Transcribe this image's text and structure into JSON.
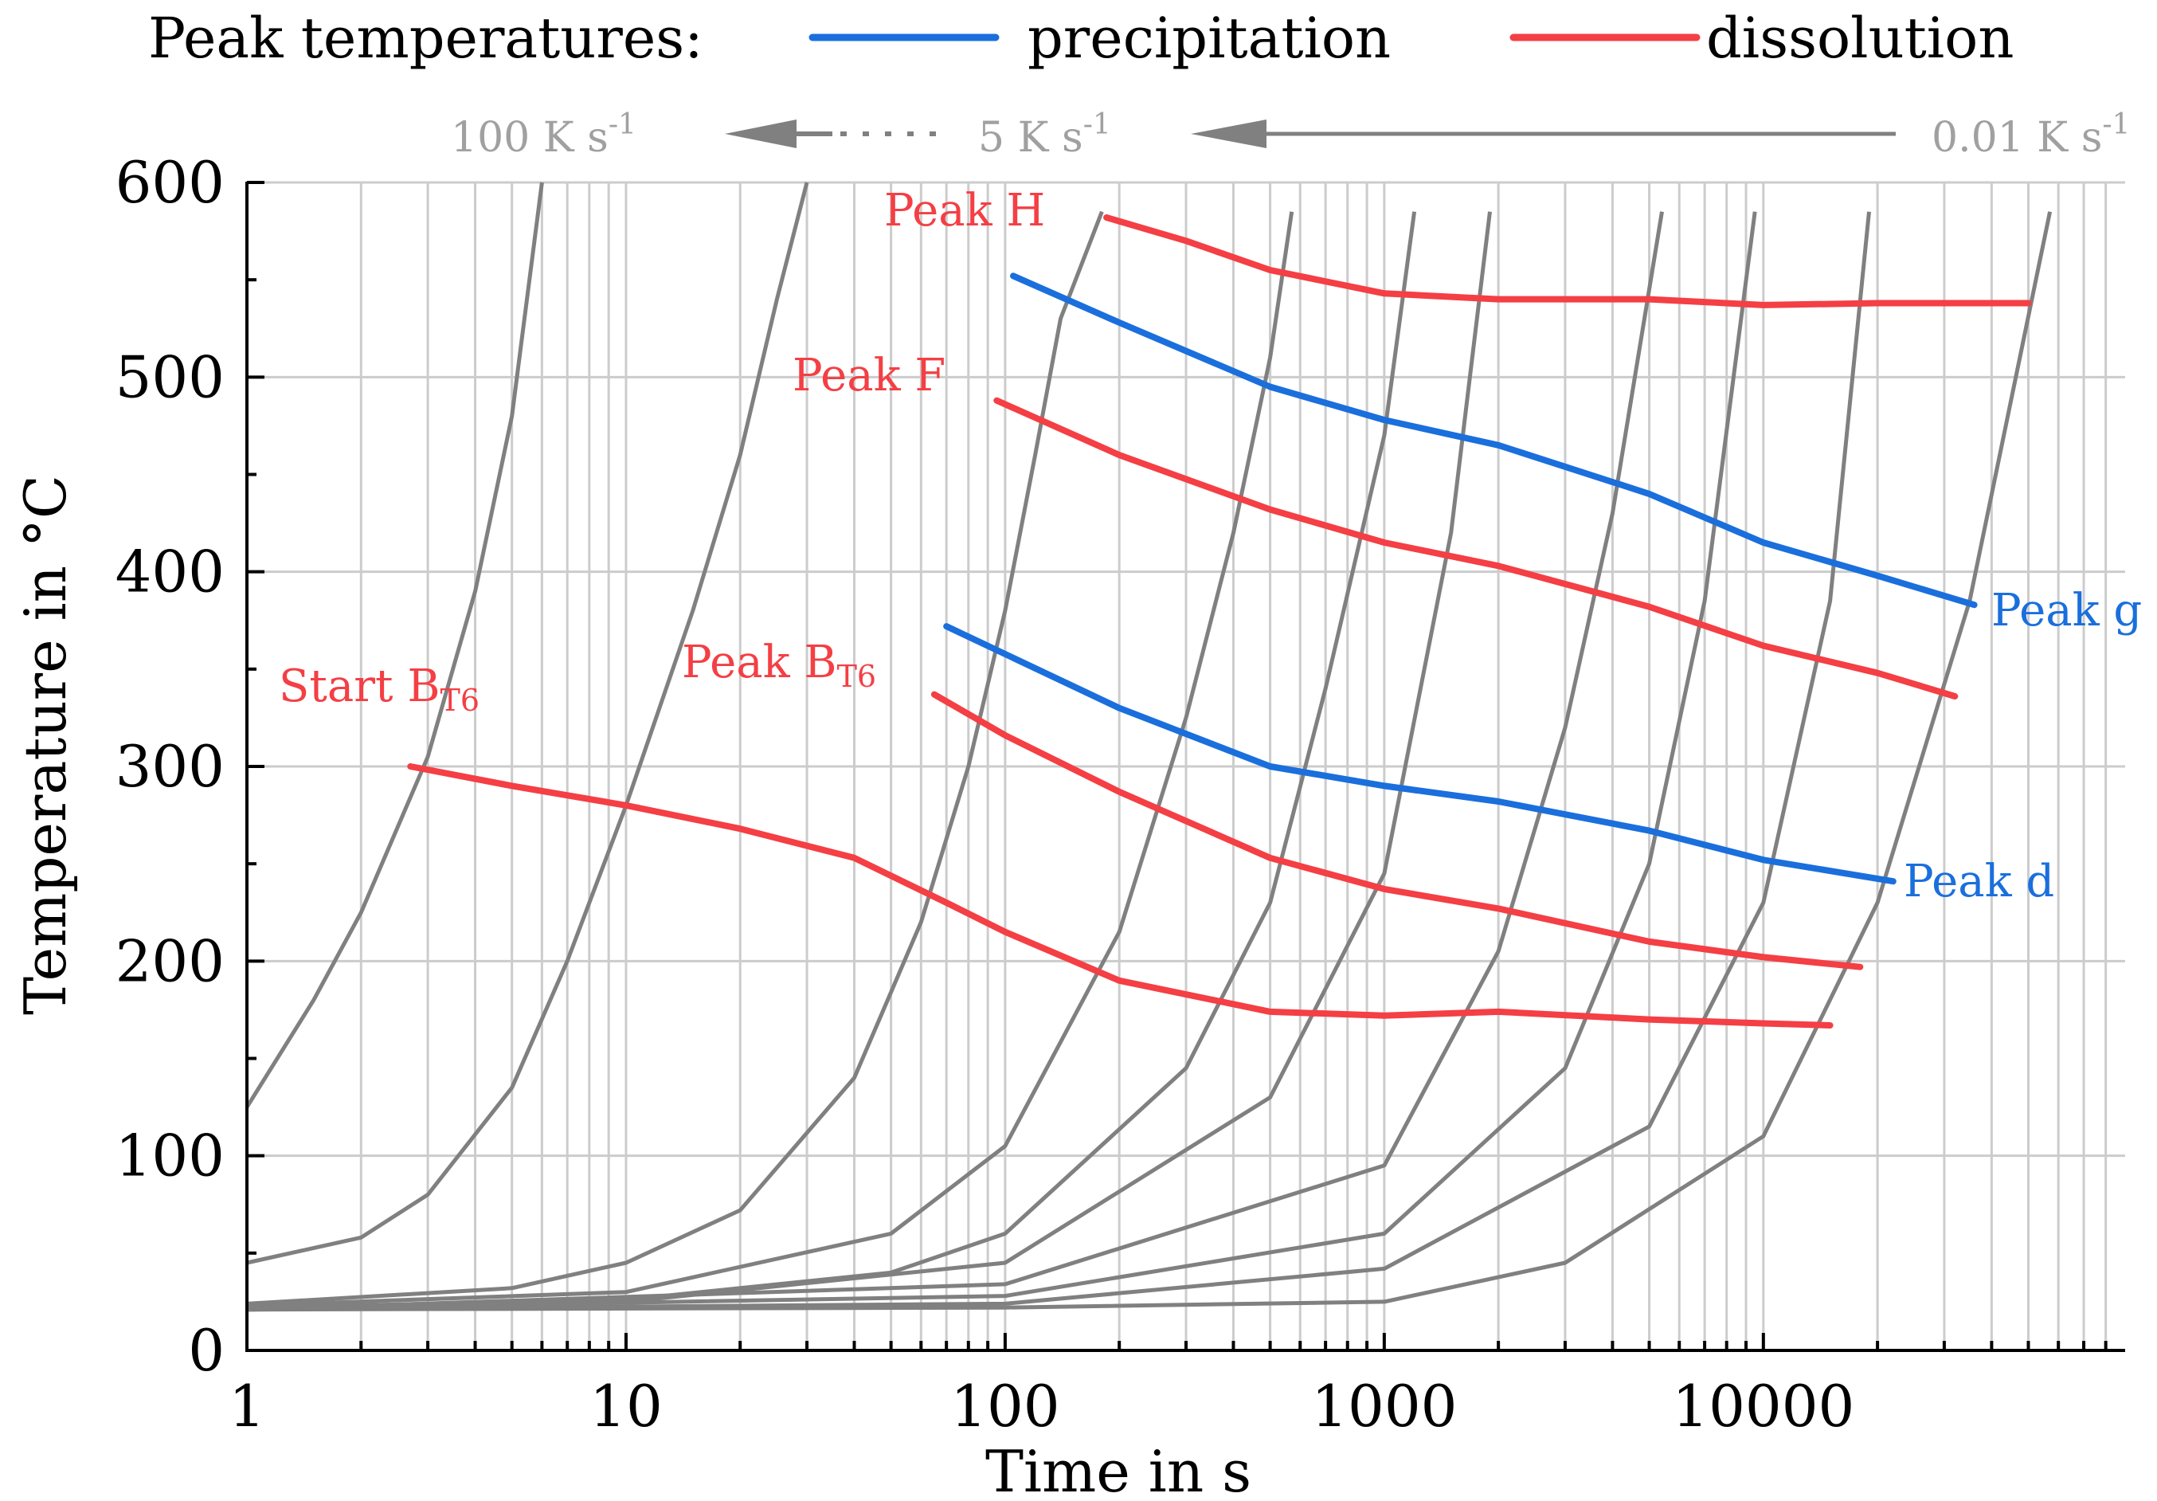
{
  "chart_data": {
    "type": "line",
    "xscale": "log",
    "xlim": [
      1,
      90000
    ],
    "ylim": [
      0,
      600
    ],
    "xlabel": "Time in s",
    "ylabel": "Temperature in °C",
    "xticks": [
      {
        "value": 1,
        "label": "1"
      },
      {
        "value": 10,
        "label": "10"
      },
      {
        "value": 100,
        "label": "100"
      },
      {
        "value": 1000,
        "label": "1000"
      },
      {
        "value": 10000,
        "label": "10000"
      }
    ],
    "yticks": [
      {
        "value": 0,
        "label": "0"
      },
      {
        "value": 100,
        "label": "100"
      },
      {
        "value": 200,
        "label": "200"
      },
      {
        "value": 300,
        "label": "300"
      },
      {
        "value": 400,
        "label": "400"
      },
      {
        "value": 500,
        "label": "500"
      },
      {
        "value": 600,
        "label": "600"
      }
    ],
    "legend": {
      "title": "Peak temperatures:",
      "entries": [
        {
          "label": "precipitation",
          "color": "#1a6fdc"
        },
        {
          "label": "dissolution",
          "color": "#f43f44"
        }
      ]
    },
    "rate_annotation": {
      "left_label": {
        "base": "100 K s",
        "exp": "-1"
      },
      "middle_label": {
        "base": "5 K s",
        "exp": "-1"
      },
      "right_label": {
        "base": "0.01 K s",
        "exp": "-1"
      }
    },
    "colors": {
      "grid": "#cccccc",
      "heating": "#808080",
      "annotation": "#a0a0a0",
      "precipitation": "#1a6fdc",
      "dissolution": "#f43f44",
      "axis": "#000000"
    },
    "heating_curves": [
      {
        "points": [
          [
            1,
            125
          ],
          [
            1.5,
            180
          ],
          [
            2,
            225
          ],
          [
            3,
            305
          ],
          [
            4,
            390
          ],
          [
            5,
            480
          ],
          [
            6,
            600
          ]
        ]
      },
      {
        "points": [
          [
            1,
            45
          ],
          [
            2,
            58
          ],
          [
            3,
            80
          ],
          [
            5,
            135
          ],
          [
            7,
            200
          ],
          [
            10,
            280
          ],
          [
            15,
            380
          ],
          [
            20,
            460
          ],
          [
            25,
            540
          ],
          [
            30,
            600
          ]
        ]
      },
      {
        "points": [
          [
            1,
            24
          ],
          [
            5,
            32
          ],
          [
            10,
            45
          ],
          [
            20,
            72
          ],
          [
            40,
            140
          ],
          [
            60,
            220
          ],
          [
            80,
            300
          ],
          [
            100,
            380
          ],
          [
            120,
            460
          ],
          [
            140,
            530
          ],
          [
            180,
            585
          ]
        ]
      },
      {
        "points": [
          [
            1,
            23
          ],
          [
            10,
            30
          ],
          [
            50,
            60
          ],
          [
            100,
            105
          ],
          [
            200,
            215
          ],
          [
            300,
            325
          ],
          [
            400,
            420
          ],
          [
            500,
            510
          ],
          [
            570,
            585
          ]
        ]
      },
      {
        "points": [
          [
            1,
            22
          ],
          [
            10,
            26
          ],
          [
            50,
            40
          ],
          [
            100,
            60
          ],
          [
            300,
            145
          ],
          [
            500,
            230
          ],
          [
            700,
            340
          ],
          [
            1000,
            470
          ],
          [
            1200,
            585
          ]
        ]
      },
      {
        "points": [
          [
            1,
            22
          ],
          [
            10,
            25
          ],
          [
            100,
            45
          ],
          [
            500,
            130
          ],
          [
            1000,
            245
          ],
          [
            1500,
            420
          ],
          [
            1900,
            585
          ]
        ]
      },
      {
        "points": [
          [
            1,
            21
          ],
          [
            100,
            34
          ],
          [
            1000,
            95
          ],
          [
            2000,
            205
          ],
          [
            3000,
            320
          ],
          [
            4000,
            430
          ],
          [
            5400,
            585
          ]
        ]
      },
      {
        "points": [
          [
            1,
            21
          ],
          [
            100,
            28
          ],
          [
            1000,
            60
          ],
          [
            3000,
            145
          ],
          [
            5000,
            250
          ],
          [
            7000,
            385
          ],
          [
            9500,
            585
          ]
        ]
      },
      {
        "points": [
          [
            1,
            21
          ],
          [
            100,
            24
          ],
          [
            1000,
            42
          ],
          [
            5000,
            115
          ],
          [
            10000,
            230
          ],
          [
            15000,
            385
          ],
          [
            19000,
            585
          ]
        ]
      },
      {
        "points": [
          [
            1,
            21
          ],
          [
            100,
            22
          ],
          [
            1000,
            25
          ],
          [
            3000,
            45
          ],
          [
            10000,
            110
          ],
          [
            20000,
            230
          ],
          [
            35000,
            385
          ],
          [
            57000,
            585
          ]
        ]
      }
    ],
    "series": [
      {
        "name": "Peak H",
        "kind": "dissolution",
        "points": [
          [
            185,
            582
          ],
          [
            300,
            570
          ],
          [
            500,
            555
          ],
          [
            1000,
            543
          ],
          [
            2000,
            540
          ],
          [
            5000,
            540
          ],
          [
            10000,
            537
          ],
          [
            20000,
            538
          ],
          [
            50000,
            538
          ]
        ]
      },
      {
        "name": "Peak g",
        "kind": "precipitation",
        "points": [
          [
            105,
            552
          ],
          [
            200,
            528
          ],
          [
            500,
            495
          ],
          [
            1000,
            478
          ],
          [
            2000,
            465
          ],
          [
            5000,
            440
          ],
          [
            10000,
            415
          ],
          [
            20000,
            398
          ],
          [
            36000,
            383
          ]
        ]
      },
      {
        "name": "Peak F",
        "kind": "dissolution",
        "points": [
          [
            95,
            488
          ],
          [
            200,
            460
          ],
          [
            500,
            432
          ],
          [
            1000,
            415
          ],
          [
            2000,
            403
          ],
          [
            5000,
            382
          ],
          [
            10000,
            362
          ],
          [
            20000,
            348
          ],
          [
            32000,
            336
          ]
        ]
      },
      {
        "name": "Peak d",
        "kind": "precipitation",
        "points": [
          [
            70,
            372
          ],
          [
            200,
            330
          ],
          [
            500,
            300
          ],
          [
            1000,
            290
          ],
          [
            2000,
            282
          ],
          [
            5000,
            267
          ],
          [
            10000,
            252
          ],
          [
            22000,
            241
          ]
        ]
      },
      {
        "name": "Peak B_T6",
        "kind": "dissolution",
        "points": [
          [
            65,
            337
          ],
          [
            100,
            316
          ],
          [
            200,
            287
          ],
          [
            500,
            253
          ],
          [
            1000,
            237
          ],
          [
            2000,
            227
          ],
          [
            5000,
            210
          ],
          [
            10000,
            202
          ],
          [
            18000,
            197
          ]
        ]
      },
      {
        "name": "Start B_T6",
        "kind": "dissolution",
        "points": [
          [
            2.7,
            300
          ],
          [
            5,
            290
          ],
          [
            10,
            280
          ],
          [
            20,
            268
          ],
          [
            40,
            253
          ],
          [
            70,
            230
          ],
          [
            100,
            215
          ],
          [
            200,
            190
          ],
          [
            500,
            174
          ],
          [
            1000,
            172
          ],
          [
            2000,
            174
          ],
          [
            5000,
            170
          ],
          [
            10000,
            168
          ],
          [
            15000,
            167
          ]
        ]
      }
    ],
    "annotations": [
      {
        "name": "start-bt6",
        "base": "Start B",
        "sub": "T6",
        "color": "#f43f44"
      },
      {
        "name": "peak-bt6",
        "base": "Peak B",
        "sub": "T6",
        "color": "#f43f44"
      },
      {
        "name": "peak-f",
        "text": "Peak F",
        "color": "#f43f44"
      },
      {
        "name": "peak-h",
        "text": "Peak H",
        "color": "#f43f44"
      },
      {
        "name": "peak-g",
        "text": "Peak g",
        "color": "#1a6fdc"
      },
      {
        "name": "peak-d",
        "text": "Peak d",
        "color": "#1a6fdc"
      }
    ]
  }
}
